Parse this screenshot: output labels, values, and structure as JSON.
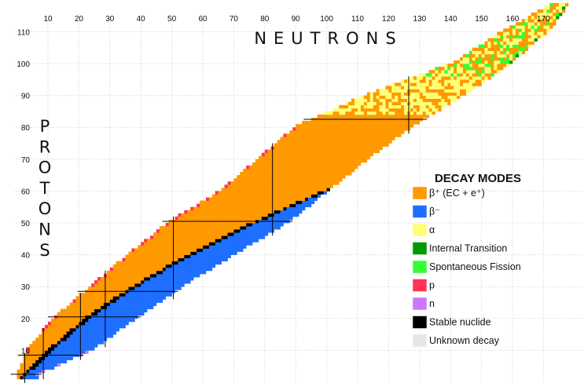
{
  "chart_data": {
    "type": "heatmap",
    "title": "",
    "xlabel": "NEUTRONS",
    "ylabel": "PROTONS",
    "xlim": [
      0,
      177
    ],
    "ylim": [
      0,
      118
    ],
    "x_ticks": [
      10,
      20,
      30,
      40,
      50,
      60,
      70,
      80,
      90,
      100,
      110,
      120,
      130,
      140,
      150,
      160,
      170
    ],
    "y_ticks": [
      10,
      20,
      30,
      40,
      50,
      60,
      70,
      80,
      90,
      100,
      110
    ],
    "grid": true,
    "magic_numbers": [
      2,
      8,
      20,
      28,
      50,
      82,
      126
    ],
    "legend": {
      "title": "DECAY MODES",
      "position": "right",
      "items": [
        {
          "label": "β⁺ (EC + e⁺)",
          "color": "#ff9900"
        },
        {
          "label": "β⁻",
          "color": "#1f6fff"
        },
        {
          "label": "α",
          "color": "#ffff77"
        },
        {
          "label": "Internal Transition",
          "color": "#009900"
        },
        {
          "label": "Spontaneous Fission",
          "color": "#33ff33"
        },
        {
          "label": "p",
          "color": "#ff3355"
        },
        {
          "label": "n",
          "color": "#cc77ff"
        },
        {
          "label": "Stable nuclide",
          "color": "#000000"
        },
        {
          "label": "Unknown decay",
          "color": "#e6e6e6"
        }
      ]
    },
    "bands": [
      {
        "Z": 2,
        "n_min": 0,
        "n_max": 6,
        "stable_n": [
          1,
          2
        ]
      },
      {
        "Z": 10,
        "n_min": 3,
        "n_max": 24,
        "stable_n": [
          10,
          11,
          12
        ]
      },
      {
        "Z": 20,
        "n_min": 12,
        "n_max": 38,
        "stable_n": [
          20,
          22,
          23,
          24,
          26,
          28
        ]
      },
      {
        "Z": 30,
        "n_min": 24,
        "n_max": 53,
        "stable_n": [
          34,
          36,
          37,
          38,
          40
        ]
      },
      {
        "Z": 40,
        "n_min": 36,
        "n_max": 70,
        "stable_n": [
          50,
          51,
          52,
          54,
          56
        ]
      },
      {
        "Z": 50,
        "n_min": 49,
        "n_max": 87,
        "stable_n": [
          62,
          64,
          65,
          66,
          67,
          68,
          69,
          70,
          72,
          74
        ]
      },
      {
        "Z": 60,
        "n_min": 66,
        "n_max": 100,
        "stable_n": [
          82,
          83,
          84,
          85,
          86,
          88
        ]
      },
      {
        "Z": 70,
        "n_min": 78,
        "n_max": 113,
        "stable_n": [
          98,
          100,
          101,
          102,
          103,
          104,
          106
        ]
      },
      {
        "Z": 80,
        "n_min": 90,
        "n_max": 127,
        "stable_n": [
          116,
          118,
          119,
          120,
          121,
          122,
          124
        ]
      },
      {
        "Z": 90,
        "n_min": 113,
        "n_max": 144,
        "stable_n": []
      },
      {
        "Z": 100,
        "n_min": 141,
        "n_max": 159,
        "stable_n": []
      },
      {
        "Z": 110,
        "n_min": 157,
        "n_max": 171,
        "stable_n": []
      },
      {
        "Z": 118,
        "n_min": 172,
        "n_max": 177,
        "stable_n": []
      }
    ]
  }
}
